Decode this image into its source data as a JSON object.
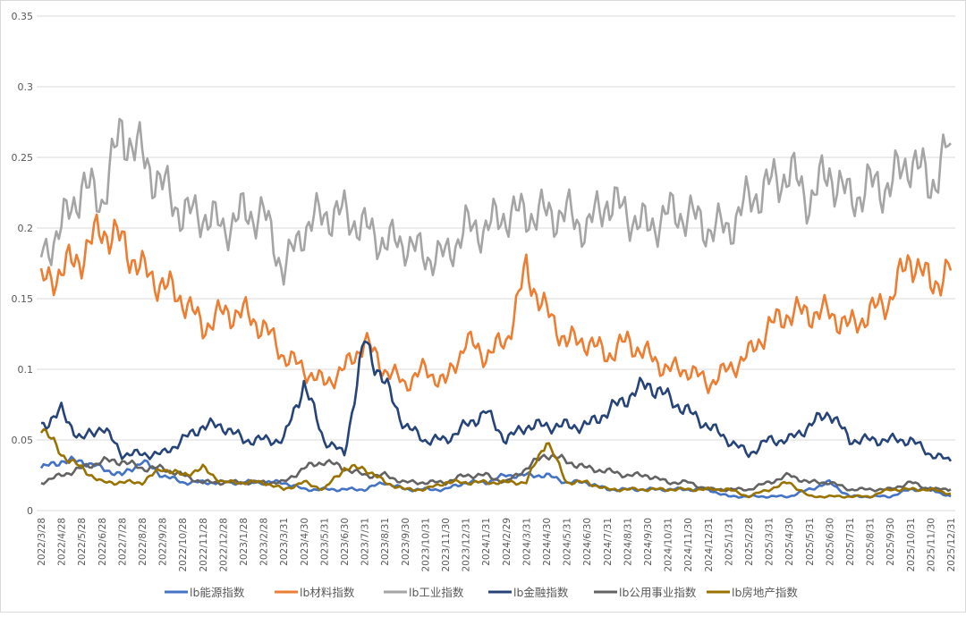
{
  "chart_data": {
    "type": "line",
    "title": "",
    "xlabel": "",
    "ylabel": "",
    "ylim": [
      0,
      0.35
    ],
    "yticks": [
      "0",
      "0.05",
      "0.1",
      "0.15",
      "0.2",
      "0.25",
      "0.3",
      "0.35"
    ],
    "grid": true,
    "legend_position": "bottom",
    "categories": [
      "2022/3/28",
      "2022/4/28",
      "2022/5/28",
      "2022/6/28",
      "2022/7/28",
      "2022/8/28",
      "2022/9/28",
      "2022/10/28",
      "2022/11/28",
      "2022/12/28",
      "2023/1/28",
      "2023/2/28",
      "2023/3/31",
      "2023/4/30",
      "2023/5/31",
      "2023/6/30",
      "2023/7/31",
      "2023/8/31",
      "2023/9/30",
      "2023/10/31",
      "2023/11/30",
      "2023/12/31",
      "2024/1/31",
      "2024/2/29",
      "2024/3/31",
      "2024/4/30",
      "2024/5/31",
      "2024/6/30",
      "2024/7/31",
      "2024/8/31",
      "2024/9/30",
      "2024/10/31",
      "2024/11/30",
      "2024/12/31",
      "2025/1/31",
      "2025/2/28",
      "2025/3/31",
      "2025/4/30",
      "2025/5/31",
      "2025/6/30",
      "2025/7/31",
      "2025/8/31",
      "2025/9/30",
      "2025/10/31",
      "2025/11/30",
      "2025/12/31"
    ],
    "series": [
      {
        "name": "lb能源指数",
        "color": "#4472c4",
        "values": [
          0.03,
          0.035,
          0.035,
          0.03,
          0.025,
          0.035,
          0.025,
          0.02,
          0.02,
          0.02,
          0.02,
          0.02,
          0.02,
          0.015,
          0.015,
          0.015,
          0.015,
          0.02,
          0.015,
          0.015,
          0.015,
          0.02,
          0.02,
          0.025,
          0.025,
          0.025,
          0.02,
          0.02,
          0.015,
          0.015,
          0.015,
          0.015,
          0.015,
          0.015,
          0.01,
          0.01,
          0.01,
          0.01,
          0.015,
          0.02,
          0.01,
          0.01,
          0.01,
          0.015,
          0.015,
          0.01
        ]
      },
      {
        "name": "lb材料指数",
        "color": "#ed7d31",
        "values": [
          0.16,
          0.17,
          0.18,
          0.2,
          0.19,
          0.17,
          0.16,
          0.15,
          0.13,
          0.14,
          0.14,
          0.13,
          0.11,
          0.1,
          0.09,
          0.1,
          0.12,
          0.1,
          0.09,
          0.1,
          0.09,
          0.12,
          0.11,
          0.12,
          0.17,
          0.14,
          0.12,
          0.12,
          0.11,
          0.12,
          0.11,
          0.1,
          0.1,
          0.09,
          0.1,
          0.11,
          0.13,
          0.14,
          0.14,
          0.14,
          0.13,
          0.14,
          0.15,
          0.18,
          0.16,
          0.17
        ]
      },
      {
        "name": "lb工业指数",
        "color": "#a5a5a5",
        "values": [
          0.18,
          0.2,
          0.23,
          0.22,
          0.27,
          0.25,
          0.23,
          0.21,
          0.21,
          0.2,
          0.21,
          0.21,
          0.17,
          0.2,
          0.21,
          0.21,
          0.2,
          0.19,
          0.19,
          0.18,
          0.18,
          0.2,
          0.2,
          0.21,
          0.21,
          0.21,
          0.21,
          0.2,
          0.22,
          0.21,
          0.2,
          0.21,
          0.21,
          0.2,
          0.2,
          0.22,
          0.23,
          0.24,
          0.22,
          0.24,
          0.22,
          0.23,
          0.23,
          0.25,
          0.23,
          0.26
        ]
      },
      {
        "name": "lb金融指数",
        "color": "#264478",
        "values": [
          0.06,
          0.07,
          0.05,
          0.06,
          0.04,
          0.04,
          0.04,
          0.05,
          0.06,
          0.06,
          0.05,
          0.05,
          0.05,
          0.09,
          0.05,
          0.04,
          0.12,
          0.09,
          0.06,
          0.05,
          0.05,
          0.06,
          0.07,
          0.05,
          0.06,
          0.06,
          0.06,
          0.06,
          0.07,
          0.08,
          0.09,
          0.08,
          0.07,
          0.06,
          0.05,
          0.04,
          0.05,
          0.05,
          0.06,
          0.07,
          0.05,
          0.05,
          0.05,
          0.05,
          0.04,
          0.035
        ]
      },
      {
        "name": "lb公用事业指数",
        "color": "#636363",
        "values": [
          0.02,
          0.025,
          0.03,
          0.035,
          0.035,
          0.03,
          0.03,
          0.025,
          0.02,
          0.02,
          0.02,
          0.02,
          0.02,
          0.03,
          0.035,
          0.03,
          0.025,
          0.025,
          0.02,
          0.02,
          0.02,
          0.025,
          0.025,
          0.02,
          0.03,
          0.04,
          0.035,
          0.03,
          0.028,
          0.025,
          0.025,
          0.02,
          0.02,
          0.015,
          0.015,
          0.015,
          0.02,
          0.025,
          0.02,
          0.02,
          0.015,
          0.015,
          0.015,
          0.02,
          0.015,
          0.015
        ]
      },
      {
        "name": "lb房地产指数",
        "color": "#997300",
        "values": [
          0.06,
          0.04,
          0.03,
          0.02,
          0.02,
          0.02,
          0.03,
          0.025,
          0.03,
          0.02,
          0.02,
          0.02,
          0.015,
          0.02,
          0.015,
          0.03,
          0.03,
          0.02,
          0.015,
          0.015,
          0.02,
          0.02,
          0.02,
          0.02,
          0.02,
          0.05,
          0.02,
          0.02,
          0.015,
          0.015,
          0.015,
          0.015,
          0.015,
          0.015,
          0.015,
          0.01,
          0.015,
          0.02,
          0.01,
          0.01,
          0.01,
          0.01,
          0.015,
          0.015,
          0.015,
          0.012
        ]
      }
    ]
  }
}
